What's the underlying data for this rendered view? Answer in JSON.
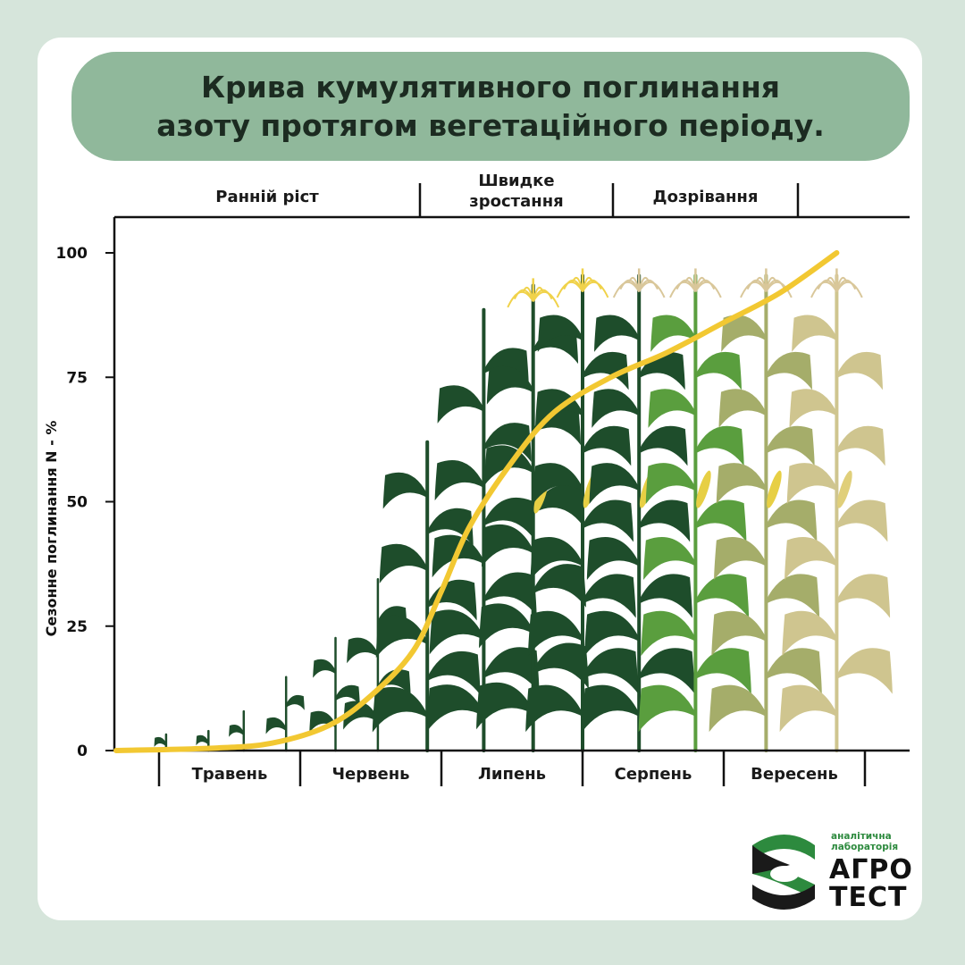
{
  "title": {
    "line1": "Крива кумулятивного поглинання",
    "line2": "азоту протягом вегетаційного періоду."
  },
  "colors": {
    "background": "#d6e5db",
    "title_pill": "#90b89b",
    "curve": "#f2c832",
    "corn_dark": "#1e4d2b",
    "corn_green": "#5a9e3e",
    "corn_olive": "#a5ad6a",
    "corn_dry": "#cfc58f",
    "tassel_yellow": "#f0d24a",
    "tassel_dry": "#d9c79a",
    "brand_green": "#2d8a3e"
  },
  "chart_data": {
    "type": "line",
    "ylabel": "Сезонне поглинання N - %",
    "yticks": [
      "0",
      "25",
      "50",
      "75",
      "100"
    ],
    "ylim": [
      0,
      100
    ],
    "months": [
      "Травень",
      "Червень",
      "Липень",
      "Серпень",
      "Вересень"
    ],
    "stages": [
      "Ранній ріст",
      "Швидке зростання",
      "Дозрівання"
    ],
    "stage_label_lines": [
      [
        "Ранній ріст"
      ],
      [
        "Швидке",
        "зростання"
      ],
      [
        "Дозрівання"
      ]
    ],
    "x_unit": "місяць (0 = початок травня)",
    "series": [
      {
        "x": [
          0.0,
          0.4,
          0.8,
          1.2,
          1.5,
          1.8,
          2.0,
          2.2,
          2.5,
          2.8,
          3.2,
          3.6,
          4.0,
          4.4,
          4.8
        ],
        "values": [
          0,
          0.5,
          1.5,
          5,
          11,
          20,
          32,
          45,
          58,
          68,
          75,
          80,
          86,
          92,
          100
        ]
      }
    ],
    "grid": false
  },
  "plants": [
    {
      "x": 0.05,
      "growth": 0.03,
      "color": "dark",
      "tassel": "none"
    },
    {
      "x": 0.35,
      "growth": 0.04,
      "color": "dark",
      "tassel": "none"
    },
    {
      "x": 0.6,
      "growth": 0.08,
      "color": "dark",
      "tassel": "none"
    },
    {
      "x": 0.9,
      "growth": 0.15,
      "color": "dark",
      "tassel": "none"
    },
    {
      "x": 1.25,
      "growth": 0.23,
      "color": "dark",
      "tassel": "none"
    },
    {
      "x": 1.55,
      "growth": 0.35,
      "color": "dark",
      "tassel": "none"
    },
    {
      "x": 1.9,
      "growth": 0.63,
      "color": "dark",
      "tassel": "none"
    },
    {
      "x": 2.3,
      "growth": 0.9,
      "color": "dark",
      "tassel": "none"
    },
    {
      "x": 2.65,
      "growth": 0.95,
      "color": "dark",
      "tassel": "yellow"
    },
    {
      "x": 3.0,
      "growth": 0.97,
      "color": "dark",
      "tassel": "yellow"
    },
    {
      "x": 3.4,
      "growth": 0.97,
      "color": "dark",
      "tassel": "dry"
    },
    {
      "x": 3.8,
      "growth": 0.97,
      "color": "green",
      "tassel": "dry"
    },
    {
      "x": 4.3,
      "growth": 0.97,
      "color": "olive",
      "tassel": "dry"
    },
    {
      "x": 4.8,
      "growth": 0.97,
      "color": "dry",
      "tassel": "dry"
    }
  ],
  "brand": {
    "line1": "аналітична",
    "line2": "лабораторія",
    "name1": "АГРО",
    "name2": "ТЕСТ"
  }
}
